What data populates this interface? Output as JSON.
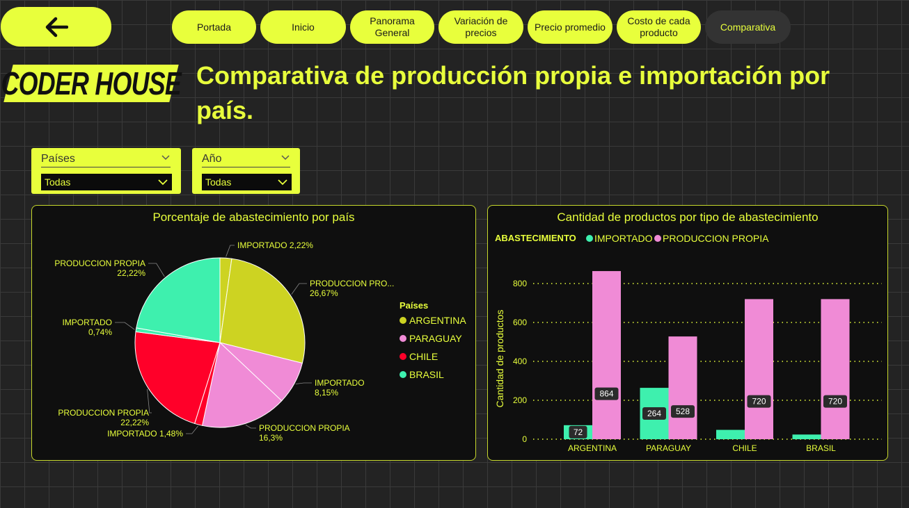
{
  "nav": {
    "tabs": [
      {
        "label": "Portada"
      },
      {
        "label": "Inicio"
      },
      {
        "label": "Panorama\nGeneral"
      },
      {
        "label": "Variación de\nprecios"
      },
      {
        "label": "Precio promedio"
      },
      {
        "label": "Costo de cada\nproducto"
      },
      {
        "label": "Comparativa",
        "active": true
      }
    ]
  },
  "logo": {
    "text": "CODER HOUSE"
  },
  "page": {
    "title": "Comparativa de producción propia e importación por país."
  },
  "filters": {
    "paises": {
      "label": "Países",
      "value": "Todas"
    },
    "anio": {
      "label": "Año",
      "value": "Todas"
    }
  },
  "colors": {
    "accent": "#e8ff3c",
    "argentina": "#cdd322",
    "paraguay": "#f08bd6",
    "chile": "#ff0029",
    "brasil": "#3ef0ae",
    "importado": "#3ef0ae",
    "produccion": "#f08bd6"
  },
  "chart_data": [
    {
      "type": "pie",
      "title": "Porcentaje de abastecimiento por país",
      "legend_title": "Países",
      "legend": [
        "ARGENTINA",
        "PARAGUAY",
        "CHILE",
        "BRASIL"
      ],
      "slices": [
        {
          "country": "ARGENTINA",
          "label": "IMPORTADO 2,22%",
          "value": 2.22
        },
        {
          "country": "ARGENTINA",
          "label": "PRODUCCION PRO...\n26,67%",
          "value": 26.67
        },
        {
          "country": "PARAGUAY",
          "label": "IMPORTADO\n8,15%",
          "value": 8.15
        },
        {
          "country": "PARAGUAY",
          "label": "PRODUCCION PROPIA\n16,3%",
          "value": 16.3
        },
        {
          "country": "CHILE",
          "label": "IMPORTADO 1,48%",
          "value": 1.48
        },
        {
          "country": "CHILE",
          "label": "PRODUCCION PROPIA\n22,22%",
          "value": 22.22
        },
        {
          "country": "BRASIL",
          "label": "IMPORTADO\n0,74%",
          "value": 0.74
        },
        {
          "country": "BRASIL",
          "label": "PRODUCCION PROPIA\n22,22%",
          "value": 22.22
        }
      ],
      "legend_placement": "right"
    },
    {
      "type": "bar",
      "title": "Cantidad de productos por tipo de abastecimiento",
      "legend_title": "ABASTECIMIENTO",
      "categories": [
        "ARGENTINA",
        "PARAGUAY",
        "CHILE",
        "BRASIL"
      ],
      "series": [
        {
          "name": "IMPORTADO",
          "values": [
            72,
            264,
            48,
            24
          ],
          "labels": [
            "72",
            "264",
            "",
            ""
          ]
        },
        {
          "name": "PRODUCCION PROPIA",
          "values": [
            864,
            528,
            720,
            720
          ],
          "labels": [
            "864",
            "528",
            "720",
            "720"
          ]
        }
      ],
      "ylabel": "Cantidad de productos",
      "xlabel": "",
      "ylim": [
        0,
        900
      ],
      "yticks": [
        0,
        200,
        400,
        600,
        800
      ],
      "grid": true,
      "legend_placement": "top-left"
    }
  ]
}
